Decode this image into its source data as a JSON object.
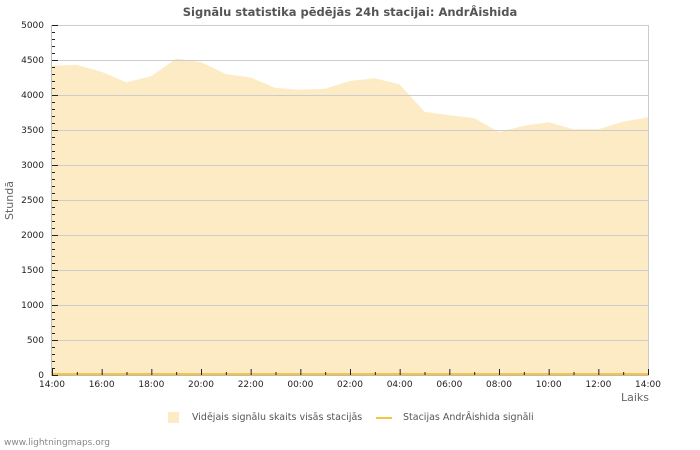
{
  "page": {
    "title": "Signālu statistika pēdējās 24h stacijai: AndrÂishida",
    "footer": "www.lightningmaps.org"
  },
  "colors": {
    "area_fill": "#fdebc6",
    "station_line": "#f5c542",
    "grid": "#cccccc",
    "axis": "#bbbbbb",
    "text": "#555555"
  },
  "legend": {
    "items": [
      {
        "label": "Vidējais signālu skaits visās stacijās",
        "type": "area"
      },
      {
        "label": "Stacijas AndrÂishida signāli",
        "type": "line"
      }
    ]
  },
  "chart_data": {
    "type": "area",
    "title": "Signālu statistika pēdējās 24h stacijai: AndrÂishida",
    "xlabel": "Laiks",
    "ylabel": "Stundā",
    "ylim": [
      0,
      5000
    ],
    "yticks": [
      0,
      500,
      1000,
      1500,
      2000,
      2500,
      3000,
      3500,
      4000,
      4500,
      5000
    ],
    "xticks": [
      "14:00",
      "16:00",
      "18:00",
      "20:00",
      "22:00",
      "00:00",
      "02:00",
      "04:00",
      "06:00",
      "08:00",
      "10:00",
      "12:00",
      "14:00"
    ],
    "grid": true,
    "legend_position": "bottom",
    "x": [
      "14:00",
      "15:00",
      "16:00",
      "17:00",
      "18:00",
      "19:00",
      "20:00",
      "21:00",
      "22:00",
      "23:00",
      "00:00",
      "01:00",
      "02:00",
      "03:00",
      "04:00",
      "05:00",
      "06:00",
      "07:00",
      "08:00",
      "09:00",
      "10:00",
      "11:00",
      "12:00",
      "13:00",
      "14:00"
    ],
    "series": [
      {
        "name": "Vidējais signālu skaits visās stacijās",
        "type": "area",
        "values": [
          4420,
          4430,
          4330,
          4180,
          4270,
          4520,
          4470,
          4300,
          4250,
          4100,
          4075,
          4090,
          4200,
          4240,
          4150,
          3760,
          3710,
          3670,
          3470,
          3560,
          3610,
          3510,
          3510,
          3620,
          3680
        ]
      },
      {
        "name": "Stacijas AndrÂishida signāli",
        "type": "line",
        "values": [
          0,
          0,
          0,
          0,
          0,
          0,
          0,
          0,
          0,
          0,
          0,
          0,
          0,
          0,
          0,
          0,
          0,
          0,
          0,
          0,
          0,
          0,
          0,
          0,
          0
        ]
      }
    ]
  }
}
